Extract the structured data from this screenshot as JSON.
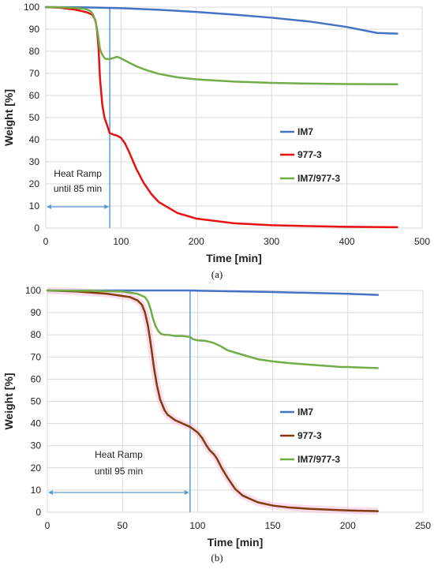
{
  "chart_data": [
    {
      "type": "line",
      "panel_label": "(a)",
      "xlabel": "Time [min]",
      "ylabel": "Weight [%]",
      "xlim": [
        0,
        500
      ],
      "ylim": [
        0,
        100
      ],
      "xticks": [
        0,
        100,
        200,
        300,
        400,
        500
      ],
      "yticks": [
        0,
        10,
        20,
        30,
        40,
        50,
        60,
        70,
        80,
        90,
        100
      ],
      "grid": "both",
      "legend_position": "center-right",
      "annotation": {
        "lines": [
          "Heat Ramp",
          "until 85 min"
        ],
        "x_value": 85
      },
      "series": [
        {
          "name": "IM7",
          "color": "#4472C4",
          "x": [
            0,
            50,
            100,
            150,
            200,
            250,
            300,
            350,
            400,
            440,
            467
          ],
          "y": [
            100,
            99.9,
            99.5,
            98.8,
            97.8,
            96.6,
            95.2,
            93.5,
            91.0,
            88.3,
            88.0
          ]
        },
        {
          "name": "977-3",
          "color": "#E81010",
          "x": [
            0,
            20,
            40,
            55,
            62,
            66,
            68,
            70,
            72,
            75,
            78,
            82,
            85,
            90,
            95,
            100,
            105,
            110,
            120,
            130,
            140,
            150,
            175,
            200,
            250,
            300,
            350,
            400,
            467
          ],
          "y": [
            100,
            99.7,
            98.8,
            97.6,
            96.5,
            94.0,
            90.0,
            82.0,
            68.0,
            56.0,
            50.0,
            46.0,
            43.0,
            42.3,
            41.8,
            40.8,
            38.5,
            35.0,
            27.0,
            20.5,
            15.5,
            11.8,
            6.8,
            4.3,
            2.2,
            1.3,
            0.9,
            0.6,
            0.4
          ]
        },
        {
          "name": "IM7/977-3",
          "color": "#70AD47",
          "x": [
            0,
            20,
            40,
            50,
            55,
            60,
            63,
            66,
            68,
            70,
            72,
            75,
            78,
            80,
            85,
            90,
            95,
            100,
            110,
            120,
            130,
            150,
            175,
            200,
            250,
            300,
            350,
            400,
            467
          ],
          "y": [
            100,
            99.9,
            99.6,
            99.3,
            98.9,
            98.0,
            96.5,
            93.5,
            90.5,
            86.0,
            81.0,
            78.5,
            77.0,
            76.5,
            76.5,
            77.0,
            77.5,
            76.8,
            75.0,
            73.3,
            71.9,
            69.8,
            68.2,
            67.3,
            66.3,
            65.7,
            65.4,
            65.2,
            65.1
          ]
        }
      ]
    },
    {
      "type": "line",
      "panel_label": "(b)",
      "xlabel": "Time [min]",
      "ylabel": "Weight [%]",
      "xlim": [
        0,
        250
      ],
      "ylim": [
        0,
        100
      ],
      "xticks": [
        0,
        50,
        100,
        150,
        200,
        250
      ],
      "yticks": [
        0,
        10,
        20,
        30,
        40,
        50,
        60,
        70,
        80,
        90,
        100
      ],
      "grid": "both",
      "legend_position": "center-right",
      "annotation": {
        "lines": [
          "Heat Ramp",
          "until 95 min"
        ],
        "x_value": 95
      },
      "series": [
        {
          "name": "IM7",
          "color": "#4472C4",
          "x": [
            0,
            50,
            95,
            100,
            150,
            200,
            220
          ],
          "y": [
            100,
            100,
            100,
            99.9,
            99.3,
            98.5,
            98.0
          ]
        },
        {
          "name": "977-3",
          "color": "#843C0C",
          "x": [
            0,
            20,
            40,
            50,
            55,
            60,
            63,
            65,
            67,
            69,
            71,
            73,
            75,
            78,
            80,
            85,
            90,
            95,
            100,
            103,
            106,
            108,
            111,
            113,
            116,
            120,
            125,
            130,
            140,
            150,
            160,
            175,
            200,
            220
          ],
          "y": [
            100,
            99.5,
            98.5,
            97.5,
            97.0,
            95.5,
            93.5,
            90.0,
            84.0,
            75.0,
            65.0,
            57.0,
            51.0,
            46.0,
            44.0,
            41.5,
            40.0,
            38.5,
            36.0,
            33.5,
            30.0,
            28.0,
            26.0,
            24.0,
            20.0,
            15.5,
            10.5,
            7.5,
            4.5,
            3.0,
            2.2,
            1.5,
            0.8,
            0.5
          ]
        },
        {
          "name": "IM7/977-3",
          "color": "#70AD47",
          "x": [
            0,
            30,
            50,
            60,
            65,
            67,
            69,
            70,
            72,
            74,
            76,
            78,
            80,
            85,
            90,
            95,
            97,
            100,
            105,
            110,
            115,
            120,
            130,
            140,
            150,
            160,
            175,
            185,
            190,
            195,
            200,
            210,
            220
          ],
          "y": [
            100,
            99.8,
            99.5,
            98.5,
            97.0,
            95.0,
            91.0,
            88.0,
            84.0,
            81.5,
            80.3,
            80.0,
            80.0,
            79.5,
            79.5,
            79.0,
            78.0,
            77.5,
            77.3,
            76.5,
            75.0,
            73.0,
            71.0,
            69.0,
            68.0,
            67.3,
            66.5,
            66.0,
            65.8,
            65.5,
            65.5,
            65.2,
            65.0
          ]
        }
      ]
    }
  ]
}
